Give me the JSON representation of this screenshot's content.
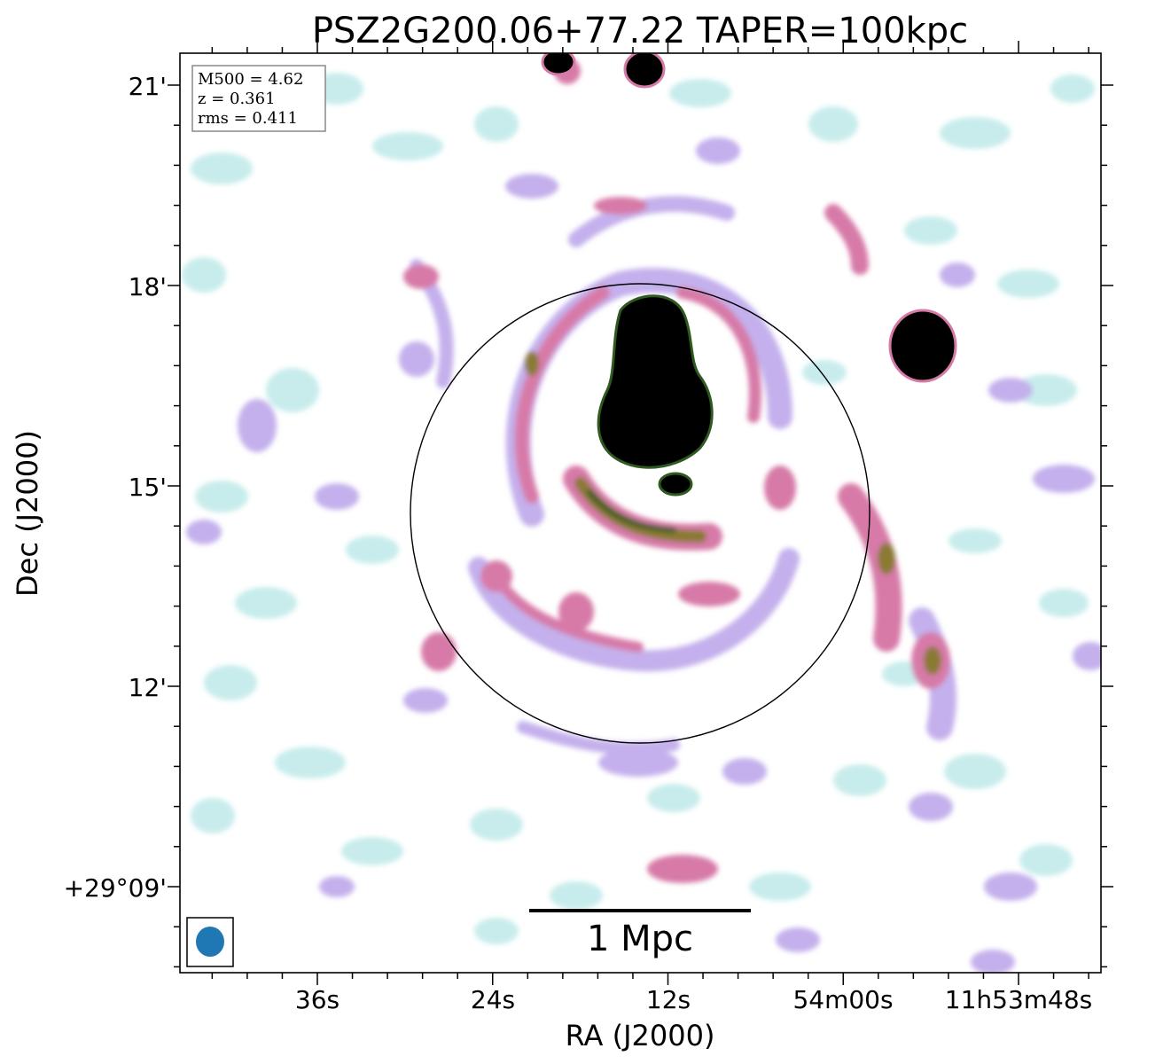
{
  "title": "PSZ2G200.06+77.22 TAPER=100kpc",
  "axes": {
    "xlabel": "RA (J2000)",
    "ylabel": "Dec (J2000)",
    "x_ticks": [
      "36s",
      "24s",
      "12s",
      "54m00s",
      "11h53m48s"
    ],
    "y_ticks": [
      "21'",
      "18'",
      "15'",
      "12'",
      "+29°09'"
    ]
  },
  "info_box": {
    "line1": "M500 = 4.62",
    "line2": "z = 0.361",
    "line3": "rms = 0.411"
  },
  "scalebar": {
    "label": "1 Mpc"
  },
  "beam": {
    "color": "#1f77b4"
  },
  "colors": {
    "cyan": "#c8ecec",
    "lavender": "#c4b0ec",
    "pink": "#d77aa8",
    "olive": "#8a7a30",
    "green": "#2e5a20",
    "black": "#000000"
  }
}
